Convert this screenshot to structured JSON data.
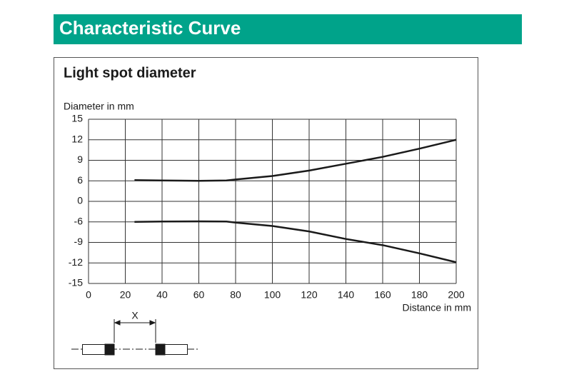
{
  "header": {
    "title": "Characteristic Curve"
  },
  "chart_data": {
    "type": "line",
    "title": "Light spot diameter",
    "y_label": "Diameter in mm",
    "x_label": "Distance in mm",
    "x": [
      25,
      40,
      60,
      75,
      80,
      100,
      120,
      140,
      160,
      180,
      200
    ],
    "series": [
      {
        "color": "#1a1a1a",
        "values": [
          6.1,
          6.05,
          6.0,
          6.05,
          6.2,
          6.7,
          7.5,
          8.5,
          9.5,
          10.7,
          12
        ]
      },
      {
        "color": "#1a1a1a",
        "values": [
          -6.0,
          -5.9,
          -5.85,
          -5.9,
          -6.1,
          -6.6,
          -7.4,
          -8.5,
          -9.4,
          -10.6,
          -11.9
        ]
      }
    ],
    "xlim": [
      0,
      200
    ],
    "xticks": [
      0,
      20,
      40,
      60,
      80,
      100,
      120,
      140,
      160,
      180,
      200
    ],
    "ylim": [
      -15,
      15
    ],
    "yticks": [
      15,
      12,
      9,
      6,
      0,
      -6,
      -9,
      -12,
      -15
    ],
    "grid": true
  },
  "diagram": {
    "label": "X"
  }
}
